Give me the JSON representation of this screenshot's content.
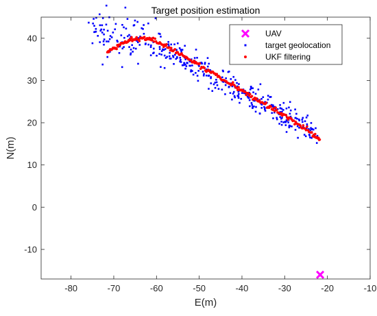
{
  "chart_data": {
    "type": "scatter",
    "title": "Target position estimation",
    "xlabel": "E(m)",
    "ylabel": "N(m)",
    "xlim": [
      -87,
      -10
    ],
    "ylim": [
      -17,
      45
    ],
    "x_ticks": [
      -80,
      -70,
      -60,
      -50,
      -40,
      -30,
      -20,
      -10
    ],
    "y_ticks": [
      -10,
      0,
      10,
      20,
      30,
      40
    ],
    "x_tick_labels": [
      "-80",
      "-70",
      "-60",
      "-50",
      "-40",
      "-30",
      "-20",
      "-10"
    ],
    "y_tick_labels": [
      "-10",
      "0",
      "10",
      "20",
      "30",
      "40"
    ],
    "grid": false,
    "legend_position": "top-right",
    "colors": {
      "uav": "#ff00ff",
      "geolocation": "#0000ff",
      "ukf": "#ff0000"
    },
    "series": [
      {
        "name": "UAV",
        "marker": "x",
        "x": [
          -21.7
        ],
        "y": [
          -16.0
        ]
      },
      {
        "name": "target geolocation",
        "marker": "dot",
        "path_x": [
          -74.5,
          -72,
          -70,
          -68,
          -66,
          -64,
          -62,
          -60,
          -58,
          -56,
          -54,
          -52,
          -50,
          -48,
          -46,
          -44,
          -42,
          -40,
          -38,
          -36,
          -34,
          -32,
          -30,
          -28,
          -26,
          -24,
          -22.5
        ],
        "path_y": [
          43.5,
          40.5,
          39.5,
          40,
          40,
          39.5,
          39,
          38.5,
          37.5,
          36.5,
          35,
          34,
          32.5,
          31.5,
          30.5,
          29.5,
          28,
          27,
          25.5,
          24.5,
          23.5,
          22.5,
          21.5,
          20.5,
          19.5,
          18,
          17
        ],
        "spread": 1.6,
        "count": 420
      },
      {
        "name": "UKF filtering",
        "marker": "dot",
        "x": [
          -71.5,
          -70.0,
          -68.5,
          -67.0,
          -65.5,
          -64.0,
          -62.5,
          -61.0,
          -59.0,
          -57.0,
          -55.0,
          -53.0,
          -51.0,
          -49.0,
          -47.0,
          -45.0,
          -43.0,
          -41.0,
          -39.0,
          -37.0,
          -35.0,
          -33.0,
          -31.0,
          -29.0,
          -27.0,
          -25.0,
          -23.0,
          -21.8
        ],
        "y": [
          37.0,
          37.5,
          38.5,
          39.3,
          39.8,
          40.0,
          40.0,
          39.6,
          38.8,
          37.8,
          36.6,
          35.4,
          34.2,
          33.0,
          31.8,
          30.6,
          29.4,
          28.2,
          27.0,
          25.8,
          24.6,
          23.4,
          22.2,
          21.0,
          19.8,
          18.6,
          17.0,
          16.0
        ]
      }
    ]
  }
}
